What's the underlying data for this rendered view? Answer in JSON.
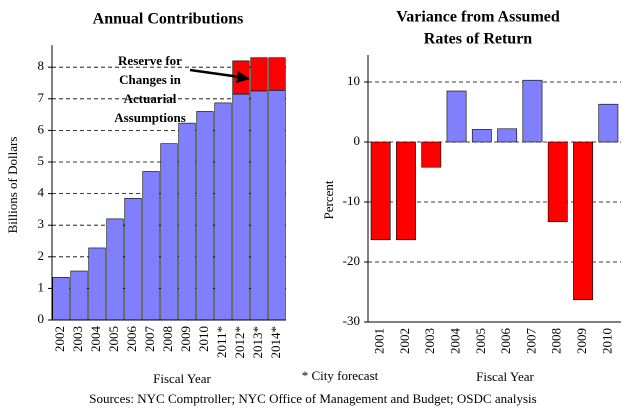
{
  "chart_data": [
    {
      "type": "stacked_bar",
      "title": "Annual Contributions",
      "y_label": "Billions of Dollars",
      "x_label": "Fiscal Year",
      "categories": [
        "2002",
        "2003",
        "2004",
        "2005",
        "2006",
        "2007",
        "2008",
        "2009",
        "2010",
        "2011*",
        "2012*",
        "2013*",
        "2014*"
      ],
      "series": [
        {
          "color": "#8080ff",
          "values": [
            1.35,
            1.55,
            2.28,
            3.2,
            3.85,
            4.7,
            5.58,
            6.23,
            6.6,
            6.87,
            7.15,
            7.25,
            7.27
          ]
        },
        {
          "color": "#ff0000",
          "values": [
            null,
            null,
            null,
            null,
            null,
            null,
            null,
            null,
            null,
            null,
            1.05,
            1.05,
            1.03
          ]
        }
      ],
      "ylim": [
        0,
        8.7
      ],
      "yticks": [
        0,
        1,
        2,
        3,
        4,
        5,
        6,
        7,
        8
      ],
      "grid": true,
      "annotation": [
        "Reserve for",
        "Changes in",
        "Actuarial",
        "Assumptions"
      ]
    },
    {
      "type": "signed_bar",
      "title": [
        "Variance from Assumed",
        "Rates of Return"
      ],
      "y_label": "Percent",
      "x_label": "Fiscal Year",
      "categories": [
        "2001",
        "2002",
        "2003",
        "2004",
        "2005",
        "2006",
        "2007",
        "2008",
        "2009",
        "2010"
      ],
      "values": [
        -16.3,
        -16.3,
        -4.2,
        8.5,
        2.1,
        2.2,
        10.3,
        -13.3,
        -26.3,
        6.3
      ],
      "positive_color": "#8080ff",
      "negative_color": "#ff0000",
      "ylim": [
        -30,
        14.5
      ],
      "yticks": [
        -30,
        -20,
        -10,
        0,
        10
      ],
      "grid": true
    }
  ],
  "footnote": "* City forecast",
  "sources": "Sources: NYC Comptroller; NYC Office of Management and Budget; OSDC analysis"
}
